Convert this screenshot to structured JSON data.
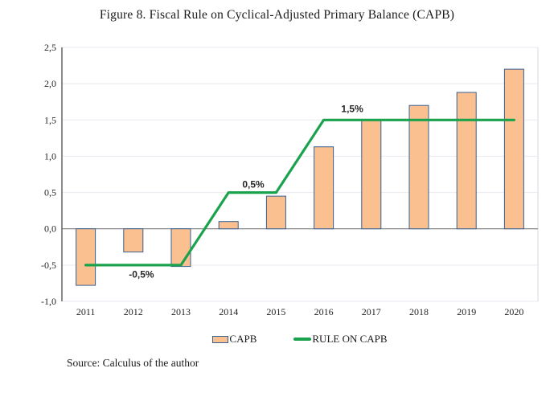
{
  "title": "Figure 8. Fiscal Rule on Cyclical-Adjusted Primary Balance (CAPB)",
  "source": "Source: Calculus of the author",
  "colors": {
    "bar_fill": "#FAC090",
    "bar_border": "#376092",
    "rule_line": "#1AA24D",
    "gridline": "#E9E9F1",
    "plot_border": "#D8D8E0",
    "zero_line": "#808080",
    "y_axis_line": "#595959",
    "annotation_text": "#1F2A44",
    "axis_text": "#262626"
  },
  "chart_data": {
    "type": "bar",
    "title": "Figure 8. Fiscal Rule on Cyclical-Adjusted Primary Balance (CAPB)",
    "categories": [
      "2011",
      "2012",
      "2013",
      "2014",
      "2015",
      "2016",
      "2017",
      "2018",
      "2019",
      "2020"
    ],
    "series": [
      {
        "name": "CAPB",
        "type": "bar",
        "values": [
          -0.78,
          -0.32,
          -0.52,
          0.1,
          0.45,
          1.13,
          1.5,
          1.7,
          1.88,
          2.2
        ]
      },
      {
        "name": "RULE ON CAPB",
        "type": "line",
        "values": [
          -0.5,
          -0.5,
          -0.5,
          0.5,
          0.5,
          1.5,
          1.5,
          1.5,
          1.5,
          1.5
        ]
      }
    ],
    "annotations": [
      {
        "label": "-0,5%",
        "xi": 1.17,
        "y": -0.63
      },
      {
        "label": "0,5%",
        "xi": 3.52,
        "y": 0.61
      },
      {
        "label": "1,5%",
        "xi": 5.6,
        "y": 1.65
      }
    ],
    "ylim": [
      -1.0,
      2.5
    ],
    "ytick_values": [
      2.5,
      2.0,
      1.5,
      1.0,
      0.5,
      0.0,
      -0.5,
      -1.0
    ],
    "ytick_labels": [
      "2,5",
      "2,0",
      "1,5",
      "1,0",
      "0,5",
      "0,0",
      "-0,5",
      "-1,0"
    ],
    "grid": true,
    "legend_position": "bottom"
  }
}
